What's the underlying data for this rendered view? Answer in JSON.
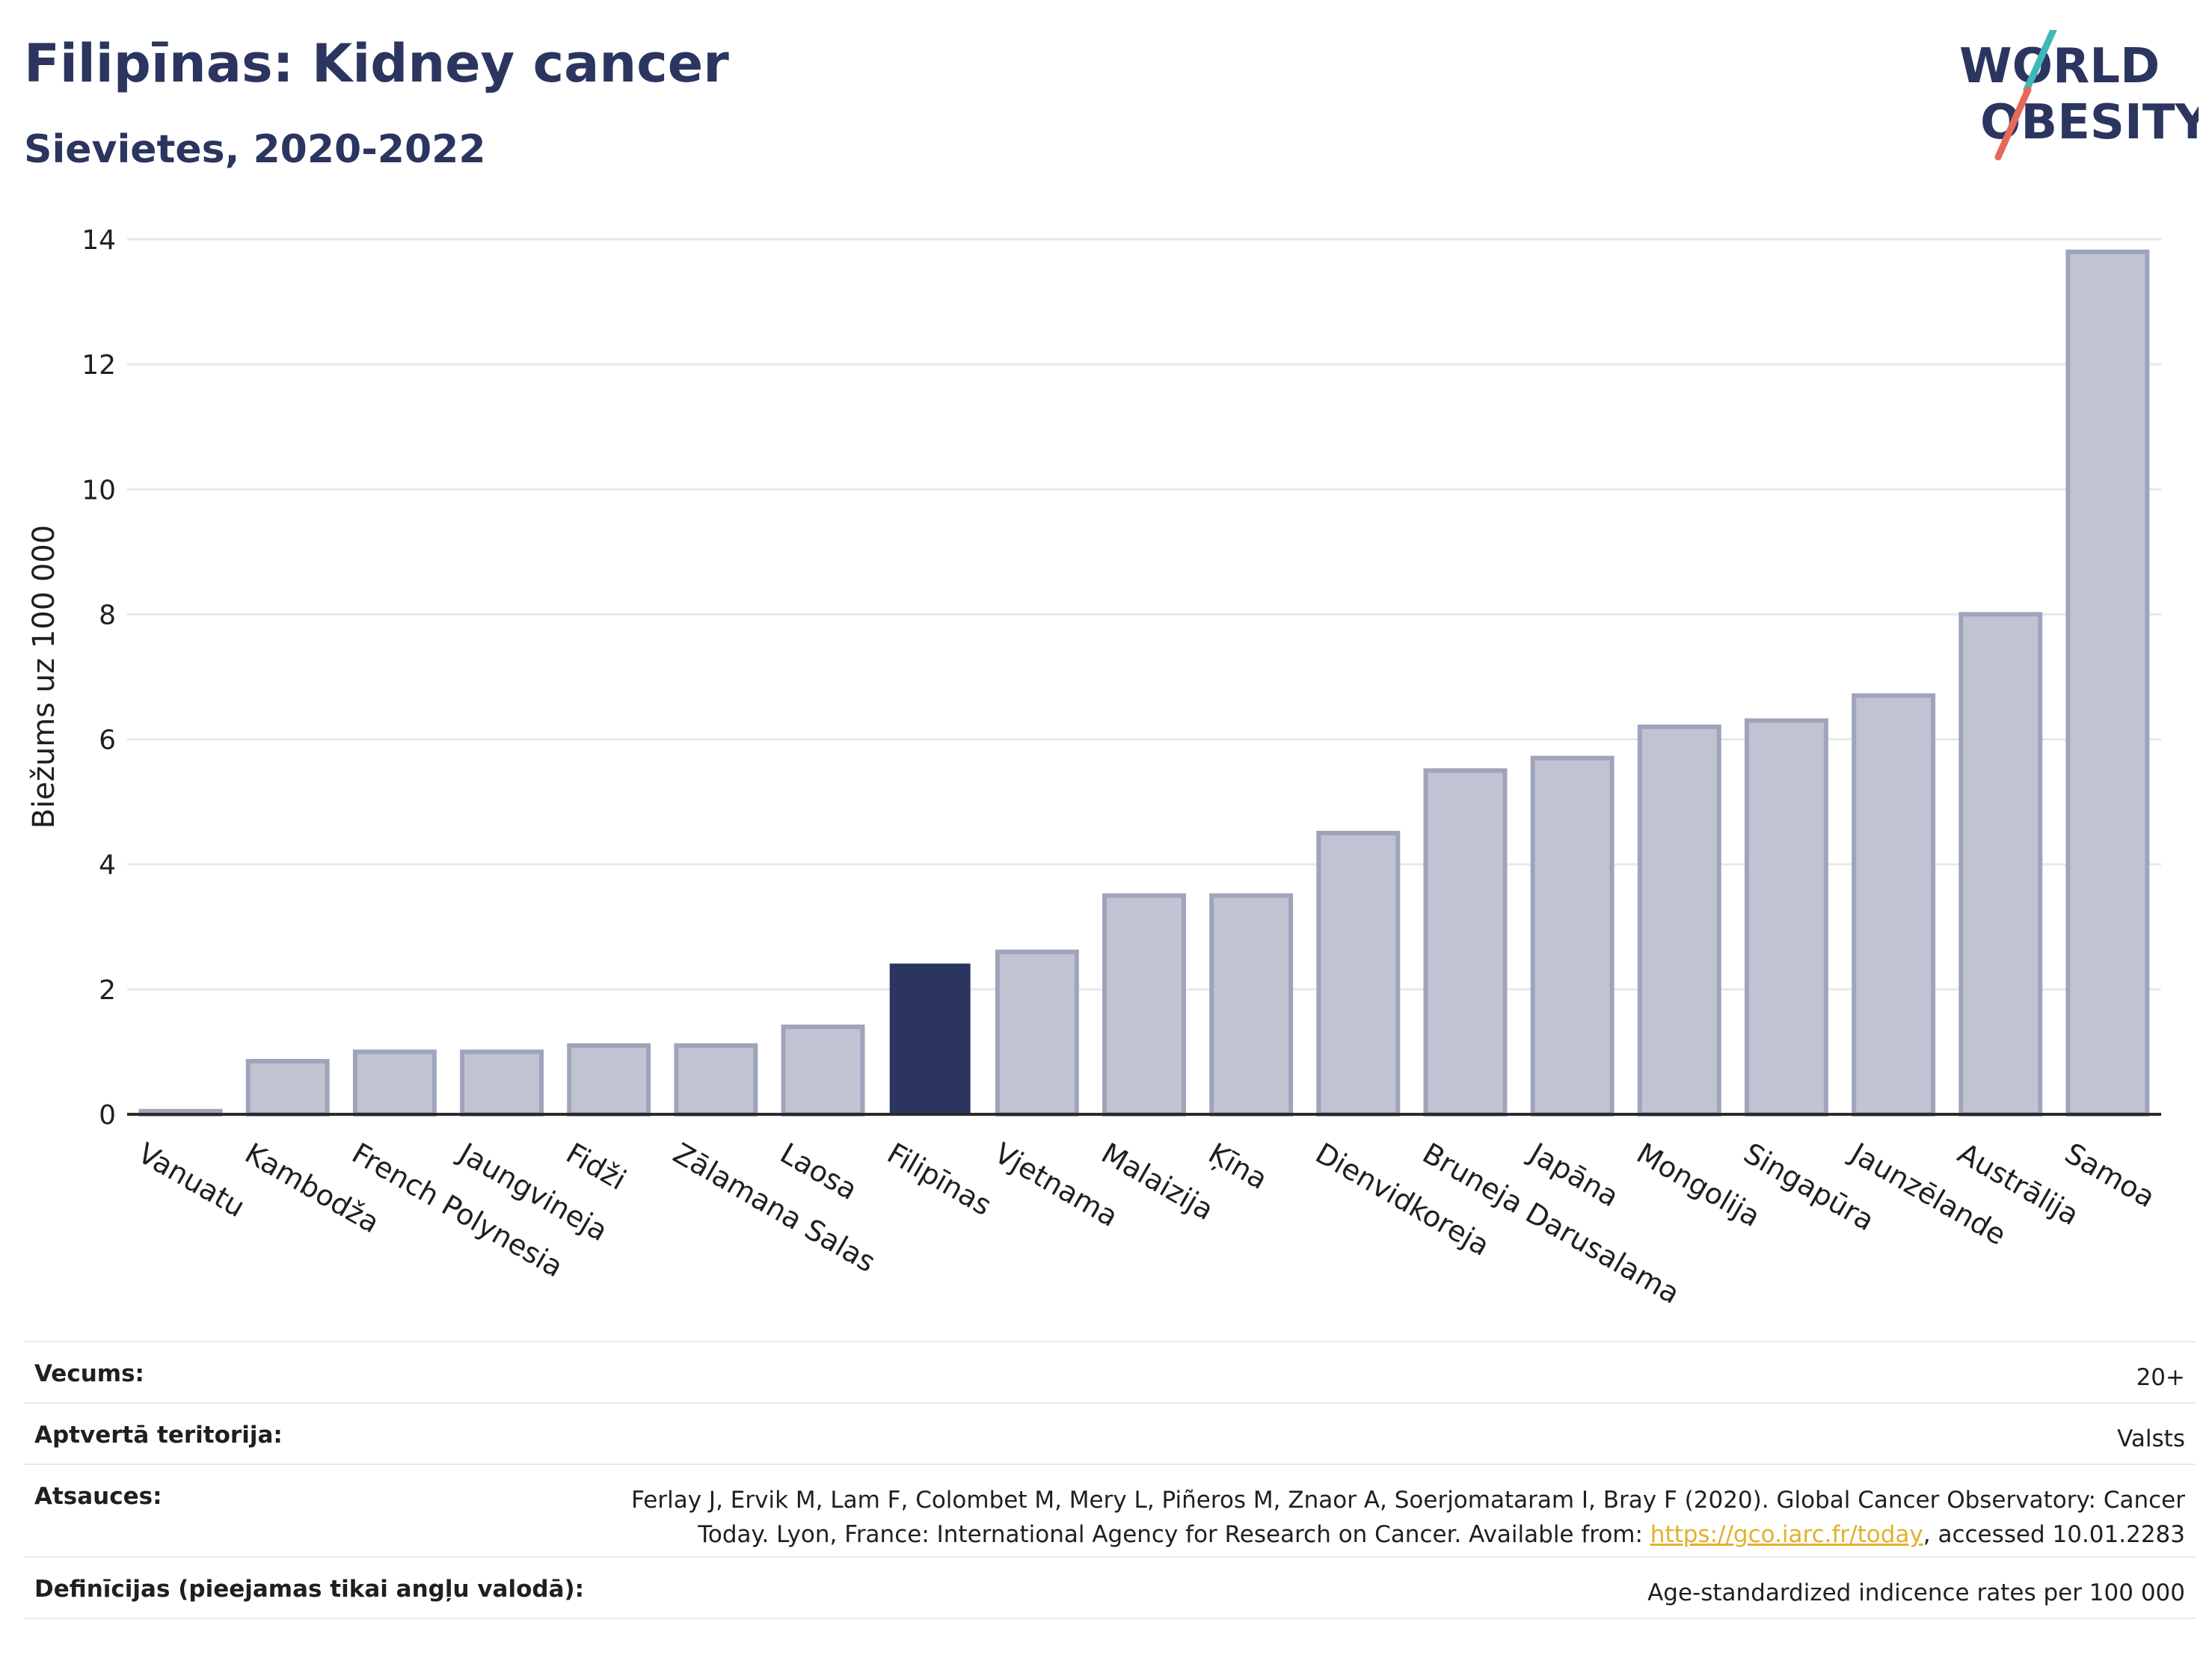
{
  "header": {
    "title": "Filipīnas: Kidney cancer",
    "subtitle": "Sievietes, 2020-2022"
  },
  "logo": {
    "line1": "WORLD",
    "line2": "OBESITY",
    "accent_teal": "#3fb8b8",
    "accent_coral": "#e56a5a",
    "text_color": "#2b3560"
  },
  "chart_data": {
    "type": "bar",
    "ylabel": "Biežums uz 100 000",
    "ylim": [
      0,
      14
    ],
    "yticks": [
      0,
      2,
      4,
      6,
      8,
      10,
      12,
      14
    ],
    "grid": true,
    "categories": [
      "Vanuatu",
      "Kambodža",
      "French Polynesia",
      "Jaungvineja",
      "Fidži",
      "Zālamana Salas",
      "Laosa",
      "Filipīnas",
      "Vjetnama",
      "Malaizija",
      "Ķīna",
      "Dienvidkoreja",
      "Bruneja Darusalama",
      "Japāna",
      "Mongolija",
      "Singapūra",
      "Jaunzēlande",
      "Austrālija",
      "Samoa"
    ],
    "values": [
      0.05,
      0.85,
      1.0,
      1.0,
      1.1,
      1.1,
      1.4,
      2.4,
      2.6,
      3.5,
      3.5,
      4.5,
      5.5,
      5.7,
      6.2,
      6.3,
      6.7,
      8.0,
      13.8
    ],
    "highlight": "Filipīnas",
    "colors": {
      "bar": "#c0c3d1",
      "bar_border": "#9fa4bb",
      "highlight": "#2b3560"
    }
  },
  "info": {
    "age_label": "Vecums:",
    "age_value": "20+",
    "territory_label": "Aptvertā teritorija:",
    "territory_value": "Valsts",
    "refs_label": "Atsauces:",
    "refs_line1": "Ferlay J, Ervik M, Lam F, Colombet M, Mery L, Piñeros M, Znaor A, Soerjomataram I, Bray F (2020). Global Cancer Observatory: Cancer",
    "refs_line2_pre": "Today. Lyon, France: International Agency for Research on Cancer. Available from: ",
    "refs_link": "https://gco.iarc.fr/today",
    "refs_line2_post": ", accessed 10.01.2283",
    "defs_label": "Definīcijas (pieejamas tikai angļu valodā):",
    "defs_value": "Age-standardized indicence rates per 100 000"
  }
}
